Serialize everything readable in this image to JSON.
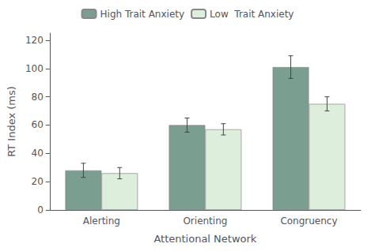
{
  "chart_data": {
    "type": "bar",
    "categories": [
      "Alerting",
      "Orienting",
      "Congruency"
    ],
    "series": [
      {
        "name": "High Trait Anxiety",
        "color": "#7a9e90",
        "values": [
          28,
          60,
          101
        ],
        "errors": [
          5,
          5,
          8
        ]
      },
      {
        "name": "Low  Trait Anxiety",
        "color": "#ddeedd",
        "values": [
          26,
          57,
          75
        ],
        "errors": [
          4,
          4,
          5
        ]
      }
    ],
    "xlabel": "Attentional Network",
    "ylabel": "RT Index (ms)",
    "ylim": [
      0,
      125
    ],
    "yticks": [
      0,
      20,
      40,
      60,
      80,
      100,
      120
    ],
    "grid": false,
    "legend": "top"
  }
}
